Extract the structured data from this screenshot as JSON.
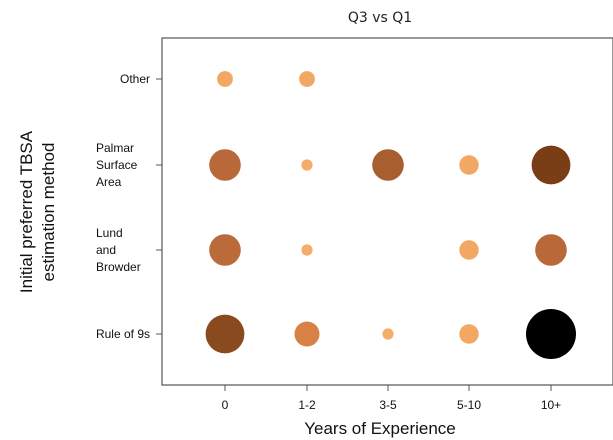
{
  "chart_data": {
    "type": "scatter",
    "title": "Q3 vs Q1",
    "xlabel": "Years of Experience",
    "ylabel": "Initial preferred TBSA estimation method",
    "x_categories": [
      "0",
      "1-2",
      "3-5",
      "5-10",
      "10+"
    ],
    "y_categories": [
      [
        "Other"
      ],
      [
        "Palmar",
        "Surface",
        "Area"
      ],
      [
        "Lund",
        "and",
        "Browder"
      ],
      [
        "Rule of 9s"
      ]
    ],
    "points": [
      {
        "x": "0",
        "y": 0,
        "value": 1,
        "color": "#f2a763"
      },
      {
        "x": "1-2",
        "y": 0,
        "value": 1,
        "color": "#f2a763"
      },
      {
        "x": "0",
        "y": 1,
        "value": 4,
        "color": "#b9683a"
      },
      {
        "x": "1-2",
        "y": 1,
        "value": 0.5,
        "color": "#f4ac6b"
      },
      {
        "x": "3-5",
        "y": 1,
        "value": 4,
        "color": "#a85f2f"
      },
      {
        "x": "5-10",
        "y": 1,
        "value": 1.5,
        "color": "#f2a763"
      },
      {
        "x": "10+",
        "y": 1,
        "value": 6,
        "color": "#7a3e17"
      },
      {
        "x": "0",
        "y": 2,
        "value": 4,
        "color": "#bb6a3a"
      },
      {
        "x": "1-2",
        "y": 2,
        "value": 0.5,
        "color": "#f4ac6b"
      },
      {
        "x": "5-10",
        "y": 2,
        "value": 1.5,
        "color": "#f2a763"
      },
      {
        "x": "10+",
        "y": 2,
        "value": 4,
        "color": "#b9683a"
      },
      {
        "x": "0",
        "y": 3,
        "value": 6,
        "color": "#8a4a1f"
      },
      {
        "x": "1-2",
        "y": 3,
        "value": 2.5,
        "color": "#d98046"
      },
      {
        "x": "3-5",
        "y": 3,
        "value": 0.5,
        "color": "#f4ac6b"
      },
      {
        "x": "5-10",
        "y": 3,
        "value": 1.5,
        "color": "#f2a763"
      },
      {
        "x": "10+",
        "y": 3,
        "value": 10,
        "color": "#000000"
      }
    ],
    "grid": false,
    "legend": "none"
  }
}
